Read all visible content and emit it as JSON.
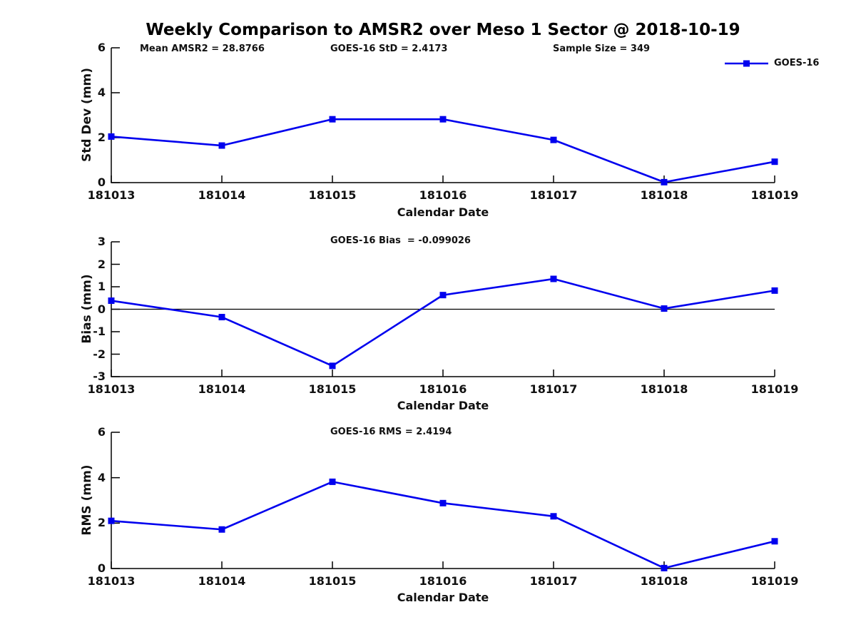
{
  "title": "Weekly Comparison to AMSR2 over Meso 1 Sector @ 2018-10-19",
  "legend": {
    "label": "GOES-16",
    "color": "#0000EE",
    "position": "top-right"
  },
  "chart_data": [
    {
      "type": "line",
      "categories": [
        "181013",
        "181014",
        "181015",
        "181016",
        "181017",
        "181018",
        "181019"
      ],
      "series": [
        {
          "name": "GOES-16",
          "color": "#0000EE",
          "marker": "square",
          "values": [
            2.05,
            1.65,
            2.82,
            2.82,
            1.9,
            0.02,
            0.93
          ]
        }
      ],
      "annotations": [
        "Mean AMSR2 = 28.8766",
        "GOES-16 StD = 2.4173",
        "Sample Size = 349"
      ],
      "xlabel": "Calendar Date",
      "ylabel": "Std Dev (mm)",
      "ylim": [
        0,
        6
      ],
      "yticks": [
        0,
        2,
        4,
        6
      ],
      "grid": false,
      "zero_line": false
    },
    {
      "type": "line",
      "categories": [
        "181013",
        "181014",
        "181015",
        "181016",
        "181017",
        "181018",
        "181019"
      ],
      "series": [
        {
          "name": "GOES-16",
          "color": "#0000EE",
          "marker": "square",
          "values": [
            0.38,
            -0.35,
            -2.52,
            0.63,
            1.35,
            0.03,
            0.83
          ]
        }
      ],
      "annotations": [
        "GOES-16 Bias  = -0.099026"
      ],
      "xlabel": "Calendar Date",
      "ylabel": "Bias (mm)",
      "ylim": [
        -3,
        3
      ],
      "yticks": [
        3,
        2,
        1,
        0,
        -1,
        -2,
        -3
      ],
      "grid": false,
      "zero_line": true
    },
    {
      "type": "line",
      "categories": [
        "181013",
        "181014",
        "181015",
        "181016",
        "181017",
        "181018",
        "181019"
      ],
      "series": [
        {
          "name": "GOES-16",
          "color": "#0000EE",
          "marker": "square",
          "values": [
            2.1,
            1.72,
            3.82,
            2.88,
            2.3,
            0.02,
            1.2
          ]
        }
      ],
      "annotations": [
        "GOES-16 RMS = 2.4194"
      ],
      "xlabel": "Calendar Date",
      "ylabel": "RMS (mm)",
      "ylim": [
        0,
        6
      ],
      "yticks": [
        0,
        2,
        4,
        6
      ],
      "grid": false,
      "zero_line": false
    }
  ]
}
